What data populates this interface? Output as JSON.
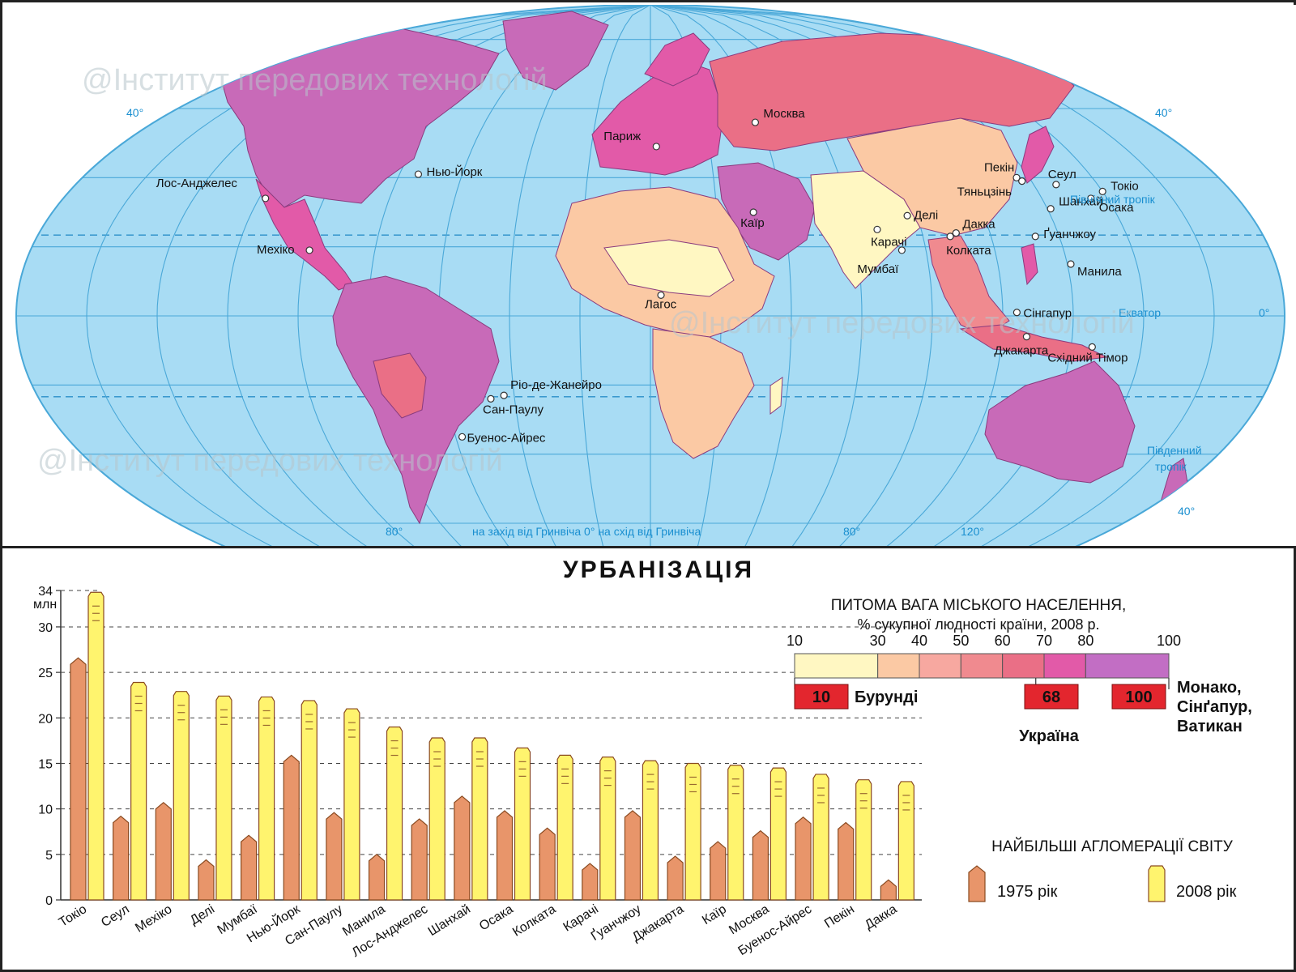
{
  "map": {
    "watermarks": [
      "@Інститут передових технологій",
      "@Інститут передових технологій",
      "@Інститут передових технологій"
    ],
    "lat_labels": {
      "n40_left": "40°",
      "n40_right": "40°",
      "eq_right": "0°",
      "s40_right": "40°"
    },
    "lon_labels": {
      "w80": "80°",
      "e80": "80°",
      "e120": "120°"
    },
    "meridian_caption": "на захід від Гринвіча  0° на схід від Гринвіча",
    "lines": {
      "tropic_north": "Північний тропік",
      "equator": "Екватор",
      "tropic_south_1": "Південний",
      "tropic_south_2": "тропік"
    },
    "cities": [
      {
        "name": "Лос-Анджелес",
        "lon": -118,
        "lat": 34
      },
      {
        "name": "Нью-Йорк",
        "lon": -74,
        "lat": 41
      },
      {
        "name": "Мехіко",
        "lon": -99,
        "lat": 19
      },
      {
        "name": "Париж",
        "lon": 2,
        "lat": 49
      },
      {
        "name": "Каїр",
        "lon": 31,
        "lat": 30
      },
      {
        "name": "Лагос",
        "lon": 3,
        "lat": 6
      },
      {
        "name": "Ріо-де-Жанейро",
        "lon": -43,
        "lat": -23
      },
      {
        "name": "Сан-Паулу",
        "lon": -47,
        "lat": -24
      },
      {
        "name": "Буенос-Айрес",
        "lon": -58,
        "lat": -35
      },
      {
        "name": "Москва",
        "lon": 38,
        "lat": 56
      },
      {
        "name": "Карачі",
        "lon": 67,
        "lat": 25
      },
      {
        "name": "Делі",
        "lon": 77,
        "lat": 29
      },
      {
        "name": "Мумбаї",
        "lon": 73,
        "lat": 19
      },
      {
        "name": "Колката",
        "lon": 88,
        "lat": 23
      },
      {
        "name": "Дакка",
        "lon": 90,
        "lat": 24
      },
      {
        "name": "Пекін",
        "lon": 116,
        "lat": 40
      },
      {
        "name": "Тяньцзінь",
        "lon": 117,
        "lat": 39
      },
      {
        "name": "Сеул",
        "lon": 127,
        "lat": 38
      },
      {
        "name": "Токіо",
        "lon": 140,
        "lat": 36
      },
      {
        "name": "Осака",
        "lon": 135,
        "lat": 34
      },
      {
        "name": "Шанхай",
        "lon": 121,
        "lat": 31
      },
      {
        "name": "Ґуанчжоу",
        "lon": 113,
        "lat": 23
      },
      {
        "name": "Манила",
        "lon": 121,
        "lat": 15
      },
      {
        "name": "Сінгапур",
        "lon": 104,
        "lat": 1
      },
      {
        "name": "Джакарта",
        "lon": 107,
        "lat": -6
      },
      {
        "name": "Східний Тімор",
        "lon": 126,
        "lat": -9
      }
    ]
  },
  "chart": {
    "title": "УРБАНІЗАЦІЯ",
    "y_unit": "млн",
    "legend_title": "НАЙБІЛЬШІ АГЛОМЕРАЦІЇ СВІТУ",
    "colors": {
      "y1975": "#e8956a",
      "y2008": "#fff46e",
      "outline": "#8a4a20"
    }
  },
  "urban_legend": {
    "title_1": "ПИТОМА ВАГА МІСЬКОГО НАСЕЛЕННЯ,",
    "title_2": "% сукупної людності країни, 2008 р.",
    "ticks": [
      "10",
      "30",
      "40",
      "50",
      "60",
      "70",
      "80",
      "100"
    ],
    "colors": [
      "#fff7c2",
      "#fbc9a4",
      "#f7a8a0",
      "#f08a8f",
      "#ea6f86",
      "#e25aa8",
      "#c26ec4"
    ],
    "examples": [
      {
        "value": "10",
        "label": "Бурунді"
      },
      {
        "value": "68",
        "label": "Україна"
      },
      {
        "value": "100",
        "label": "Монако,"
      }
    ],
    "extra_1": "Сінґапур,",
    "extra_2": "Ватикан"
  },
  "chart_data": {
    "type": "bar",
    "title": "УРБАНІЗАЦІЯ",
    "ylabel": "млн",
    "ylim": [
      0,
      34
    ],
    "yticks": [
      0,
      5,
      10,
      15,
      20,
      25,
      30,
      34
    ],
    "grid": true,
    "legend_position": "right",
    "categories": [
      "Токіо",
      "Сеул",
      "Мехіко",
      "Делі",
      "Мумбаї",
      "Нью-Йорк",
      "Сан-Паулу",
      "Манила",
      "Лос-Анджелес",
      "Шанхай",
      "Осака",
      "Колката",
      "Карачі",
      "Ґуанчжоу",
      "Джакарта",
      "Каїр",
      "Москва",
      "Буенос-Айрес",
      "Пекін",
      "Дакка"
    ],
    "series": [
      {
        "name": "1975 рік",
        "values": [
          26.6,
          9.2,
          10.7,
          4.4,
          7.1,
          15.9,
          9.6,
          5.0,
          8.9,
          11.4,
          9.8,
          7.9,
          4.0,
          9.8,
          4.8,
          6.4,
          7.6,
          9.1,
          8.5,
          2.2
        ]
      },
      {
        "name": "2008 рік",
        "values": [
          33.8,
          23.9,
          22.9,
          22.4,
          22.3,
          21.9,
          21.0,
          19.0,
          17.8,
          17.8,
          16.7,
          15.9,
          15.7,
          15.3,
          15.0,
          14.8,
          14.5,
          13.8,
          13.2,
          13.0
        ]
      }
    ]
  }
}
